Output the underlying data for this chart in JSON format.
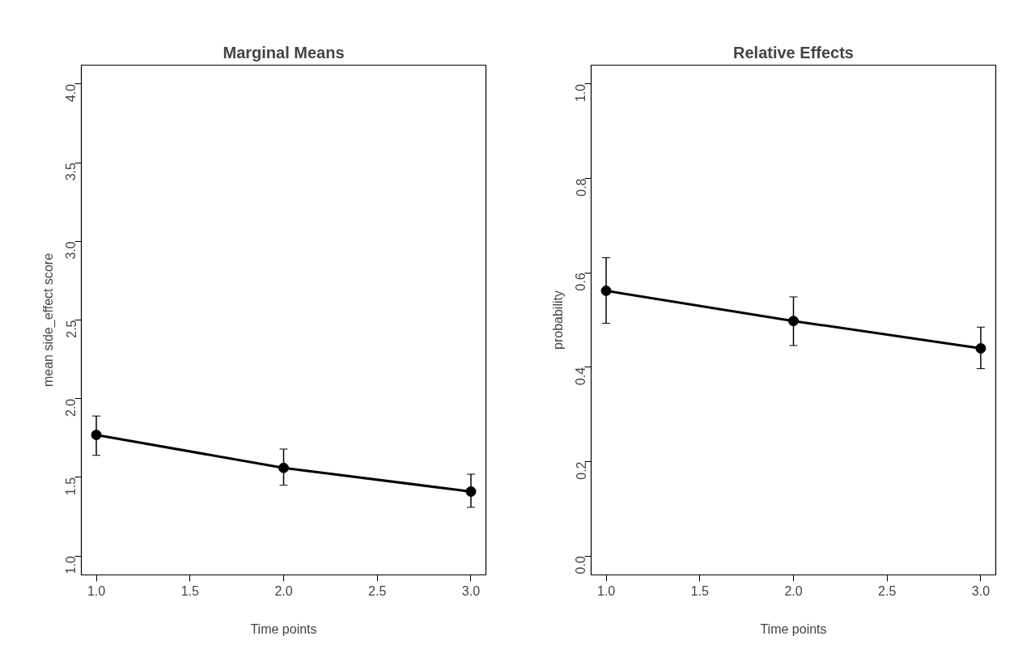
{
  "chart_data": [
    {
      "type": "line",
      "title": "Marginal Means",
      "xlabel": "Time points",
      "ylabel": "mean side_effect score",
      "x": [
        1,
        2,
        3
      ],
      "series": [
        {
          "color": "#000000",
          "values": [
            1.77,
            1.56,
            1.41
          ],
          "errors": [
            [
              1.64,
              1.89
            ],
            [
              1.45,
              1.68
            ],
            [
              1.31,
              1.52
            ]
          ]
        }
      ],
      "xlim": [
        0.92,
        3.08
      ],
      "xticks": [
        {
          "value": 1,
          "label": "1.0"
        },
        {
          "value": 1.5,
          "label": "1.5"
        },
        {
          "value": 2,
          "label": "2.0"
        },
        {
          "value": 2.5,
          "label": "2.5"
        },
        {
          "value": 3,
          "label": "3.0"
        }
      ],
      "ylim": [
        0.88,
        4.12
      ],
      "yticks": [
        {
          "value": 1,
          "label": "1.0"
        },
        {
          "value": 1.5,
          "label": "1.5"
        },
        {
          "value": 2,
          "label": "2.0"
        },
        {
          "value": 2.5,
          "label": "2.5"
        },
        {
          "value": 3,
          "label": "3.0"
        },
        {
          "value": 3.5,
          "label": "3.5"
        },
        {
          "value": 4,
          "label": "4.0"
        }
      ],
      "marker": "circle",
      "line_style": "solid"
    },
    {
      "type": "line",
      "title": "Relative Effects",
      "xlabel": "Time points",
      "ylabel": "probability",
      "x": [
        1,
        2,
        3
      ],
      "series": [
        {
          "color": "#000000",
          "values": [
            0.562,
            0.498,
            0.44
          ],
          "errors": [
            [
              0.493,
              0.632
            ],
            [
              0.446,
              0.549
            ],
            [
              0.397,
              0.485
            ]
          ]
        }
      ],
      "xlim": [
        0.92,
        3.08
      ],
      "xticks": [
        {
          "value": 1,
          "label": "1.0"
        },
        {
          "value": 1.5,
          "label": "1.5"
        },
        {
          "value": 2,
          "label": "2.0"
        },
        {
          "value": 2.5,
          "label": "2.5"
        },
        {
          "value": 3,
          "label": "3.0"
        }
      ],
      "ylim": [
        -0.04,
        1.04
      ],
      "yticks": [
        {
          "value": 0,
          "label": "0.0"
        },
        {
          "value": 0.2,
          "label": "0.2"
        },
        {
          "value": 0.4,
          "label": "0.4"
        },
        {
          "value": 0.6,
          "label": "0.6"
        },
        {
          "value": 0.8,
          "label": "0.8"
        },
        {
          "value": 1,
          "label": "1.0"
        }
      ],
      "marker": "circle",
      "line_style": "solid"
    }
  ]
}
